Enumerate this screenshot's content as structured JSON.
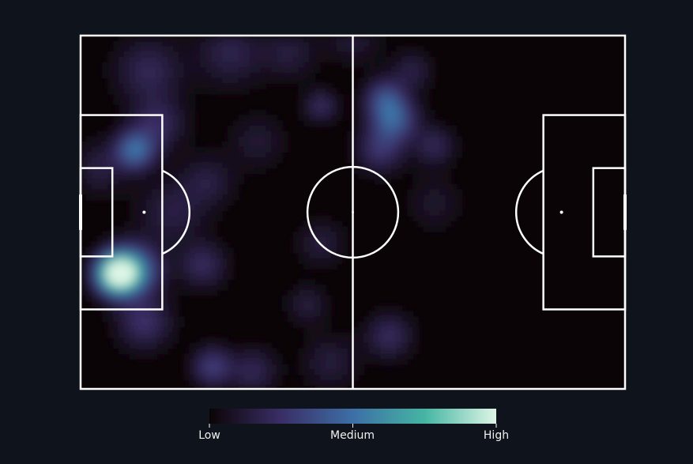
{
  "chart_data": {
    "type": "heatmap",
    "title": "",
    "xlabel": "",
    "ylabel": "",
    "grid": false,
    "xlim": [
      0,
      120
    ],
    "ylim": [
      0,
      80
    ],
    "colorbar": {
      "position": "bottom",
      "tick_labels": [
        "Low",
        "Medium",
        "High"
      ],
      "colors": [
        "#0b0406",
        "#3a2e66",
        "#3d6fa6",
        "#45b5a3",
        "#def5e5"
      ]
    },
    "colors": {
      "background": "#0f131b",
      "pitch": "#0b0406",
      "lines": "#ffffff"
    },
    "hotspots": [
      {
        "x": 8,
        "y": 54,
        "intensity": 1.0,
        "spread": 3.2
      },
      {
        "x": 12,
        "y": 53,
        "intensity": 0.45,
        "spread": 4.0
      },
      {
        "x": 12,
        "y": 26,
        "intensity": 0.48,
        "spread": 3.0
      },
      {
        "x": 17,
        "y": 20,
        "intensity": 0.22,
        "spread": 4.0
      },
      {
        "x": 4,
        "y": 30,
        "intensity": 0.15,
        "spread": 4.0
      },
      {
        "x": 14,
        "y": 65,
        "intensity": 0.25,
        "spread": 4.0
      },
      {
        "x": 15,
        "y": 8,
        "intensity": 0.2,
        "spread": 5.0
      },
      {
        "x": 27,
        "y": 52,
        "intensity": 0.22,
        "spread": 3.5
      },
      {
        "x": 28,
        "y": 33,
        "intensity": 0.15,
        "spread": 4.0
      },
      {
        "x": 20,
        "y": 40,
        "intensity": 0.16,
        "spread": 5.0
      },
      {
        "x": 29,
        "y": 75,
        "intensity": 0.3,
        "spread": 3.0
      },
      {
        "x": 38,
        "y": 76,
        "intensity": 0.2,
        "spread": 3.5
      },
      {
        "x": 33,
        "y": 4,
        "intensity": 0.18,
        "spread": 5.0
      },
      {
        "x": 46,
        "y": 4,
        "intensity": 0.14,
        "spread": 4.0
      },
      {
        "x": 53,
        "y": 16,
        "intensity": 0.22,
        "spread": 2.5
      },
      {
        "x": 50,
        "y": 61,
        "intensity": 0.14,
        "spread": 3.0
      },
      {
        "x": 55,
        "y": 74,
        "intensity": 0.14,
        "spread": 4.0
      },
      {
        "x": 60,
        "y": 0,
        "intensity": 0.14,
        "spread": 4.0
      },
      {
        "x": 69,
        "y": 19,
        "intensity": 0.42,
        "spread": 3.5
      },
      {
        "x": 67,
        "y": 14,
        "intensity": 0.3,
        "spread": 3.0
      },
      {
        "x": 66,
        "y": 26,
        "intensity": 0.25,
        "spread": 3.5
      },
      {
        "x": 78,
        "y": 25,
        "intensity": 0.2,
        "spread": 3.0
      },
      {
        "x": 78,
        "y": 38,
        "intensity": 0.1,
        "spread": 4.0
      },
      {
        "x": 68,
        "y": 68,
        "intensity": 0.22,
        "spread": 3.5
      },
      {
        "x": 73,
        "y": 8,
        "intensity": 0.16,
        "spread": 3.0
      },
      {
        "x": 53,
        "y": 47,
        "intensity": 0.14,
        "spread": 3.5
      },
      {
        "x": 39,
        "y": 24,
        "intensity": 0.12,
        "spread": 4.0
      }
    ]
  }
}
